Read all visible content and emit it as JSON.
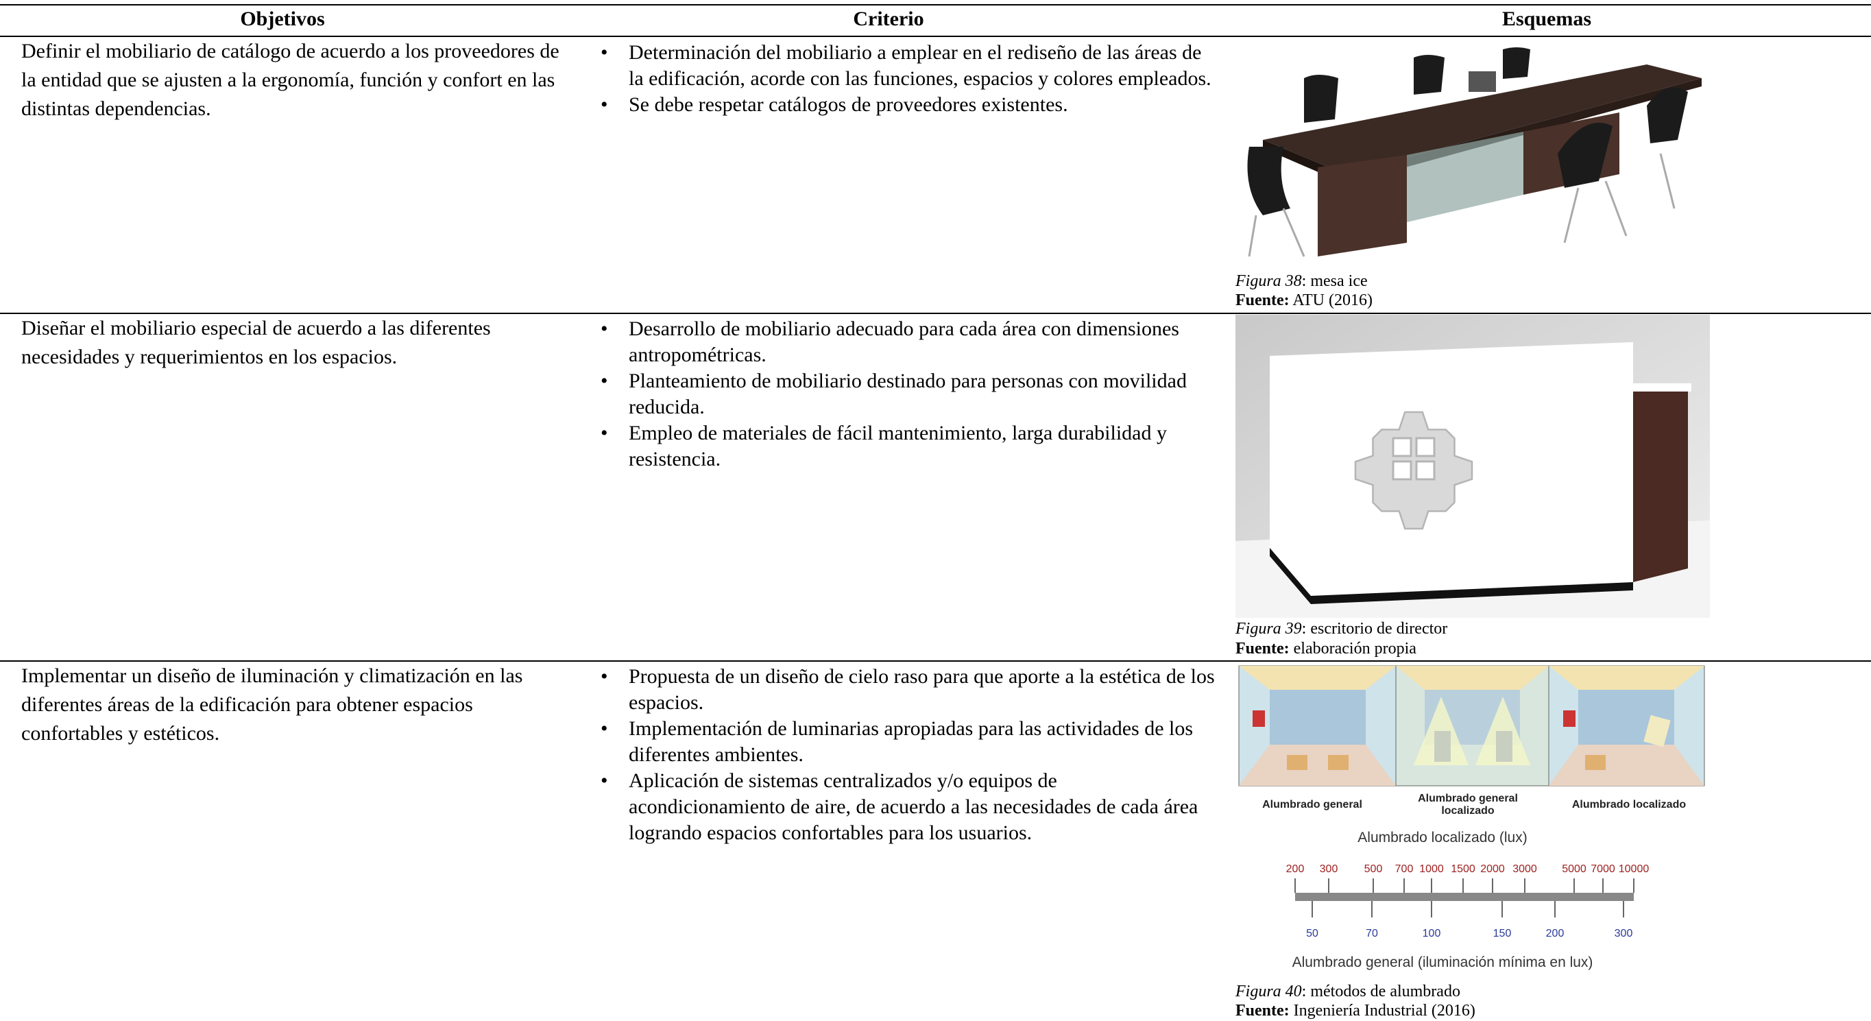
{
  "table": {
    "headers": [
      "Objetivos",
      "Criterio",
      "Esquemas"
    ],
    "rows": [
      {
        "objective": "Definir el mobiliario de catálogo de acuerdo a los proveedores de la entidad que se ajusten a la ergonomía, función y confort en las distintas dependencias.",
        "criteria": [
          "Determinación del mobiliario a emplear en el rediseño de las áreas de la edificación, acorde con las funciones, espacios y colores empleados.",
          "Se debe respetar catálogos de proveedores existentes."
        ],
        "caption": {
          "figure": "Figura 38",
          "text": ": mesa ice",
          "source_label": "Fuente:",
          "source": " ATU (2016)"
        }
      },
      {
        "objective": "Diseñar el mobiliario especial de acuerdo a las diferentes necesidades y requerimientos en los espacios.",
        "criteria": [
          "Desarrollo de mobiliario adecuado para cada área con dimensiones antropométricas.",
          "Planteamiento de mobiliario destinado para personas con movilidad reducida.",
          "Empleo de materiales de fácil mantenimiento, larga durabilidad y resistencia."
        ],
        "caption": {
          "figure": "Figura 39",
          "text": ": escritorio de director",
          "source_label": "Fuente:",
          "source": " elaboración propia"
        }
      },
      {
        "objective": "Implementar un diseño de iluminación y climatización en las diferentes áreas de la edificación para obtener espacios confortables y estéticos.",
        "criteria": [
          "Propuesta de un diseño de cielo raso para que aporte a la estética de los espacios.",
          "Implementación de luminarias apropiadas para las actividades de los diferentes ambientes.",
          "Aplicación de sistemas centralizados y/o equipos de acondicionamiento de aire, de acuerdo a las necesidades de cada área logrando espacios confortables para los usuarios."
        ],
        "caption": {
          "figure": "Figura 40",
          "text": ": métodos de alumbrado",
          "source_label": "Fuente:",
          "source": " Ingeniería Industrial (2016)"
        },
        "diagram": {
          "panel_labels": [
            "Alumbrado general",
            "Alumbrado general localizado",
            "Alumbrado localizado"
          ],
          "scale_top_title": "Alumbrado localizado (lux)",
          "scale_top": [
            200,
            300,
            500,
            700,
            1000,
            1500,
            2000,
            3000,
            5000,
            7000,
            10000
          ],
          "scale_bottom": [
            50,
            70,
            100,
            150,
            200,
            300
          ],
          "scale_bottom_title": "Alumbrado general (iluminación mínima en lux)"
        }
      }
    ]
  }
}
